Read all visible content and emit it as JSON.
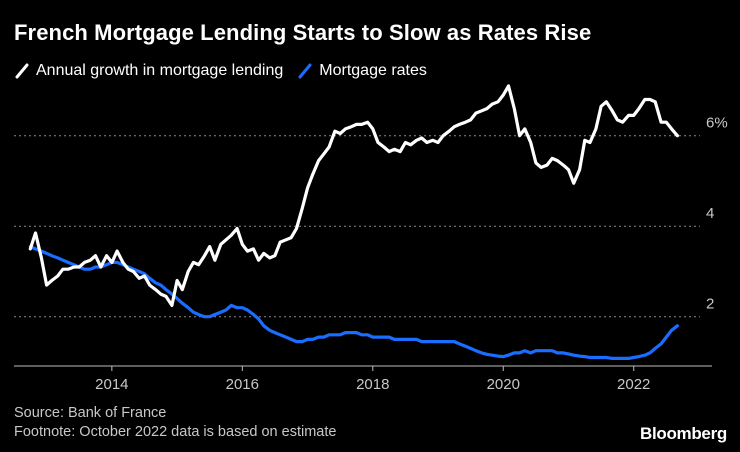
{
  "chart_data": {
    "type": "line",
    "title": "French Mortgage Lending Starts to Slow as Rates Rise",
    "y_unit_label": "6%",
    "x_ticks": [
      2014,
      2016,
      2018,
      2020,
      2022
    ],
    "y_ticks": [
      2,
      4,
      6
    ],
    "xlim": [
      2012.5,
      2023.2
    ],
    "ylim": [
      1.0,
      6.9
    ],
    "grid": true,
    "legend_position": "top-left",
    "series": [
      {
        "name": "Annual growth in mortgage lending",
        "color": "#ffffff",
        "points": [
          [
            2012.75,
            3.5
          ],
          [
            2012.83,
            3.85
          ],
          [
            2012.92,
            3.3
          ],
          [
            2013.0,
            2.7
          ],
          [
            2013.08,
            2.8
          ],
          [
            2013.17,
            2.9
          ],
          [
            2013.25,
            3.05
          ],
          [
            2013.33,
            3.05
          ],
          [
            2013.42,
            3.1
          ],
          [
            2013.5,
            3.1
          ],
          [
            2013.58,
            3.2
          ],
          [
            2013.67,
            3.25
          ],
          [
            2013.75,
            3.35
          ],
          [
            2013.83,
            3.1
          ],
          [
            2013.92,
            3.35
          ],
          [
            2014.0,
            3.2
          ],
          [
            2014.08,
            3.45
          ],
          [
            2014.17,
            3.2
          ],
          [
            2014.25,
            3.05
          ],
          [
            2014.33,
            3.0
          ],
          [
            2014.42,
            2.85
          ],
          [
            2014.5,
            2.9
          ],
          [
            2014.58,
            2.7
          ],
          [
            2014.67,
            2.6
          ],
          [
            2014.75,
            2.5
          ],
          [
            2014.83,
            2.45
          ],
          [
            2014.92,
            2.25
          ],
          [
            2015.0,
            2.8
          ],
          [
            2015.08,
            2.6
          ],
          [
            2015.17,
            3.0
          ],
          [
            2015.25,
            3.2
          ],
          [
            2015.33,
            3.15
          ],
          [
            2015.42,
            3.35
          ],
          [
            2015.5,
            3.55
          ],
          [
            2015.58,
            3.25
          ],
          [
            2015.67,
            3.6
          ],
          [
            2015.75,
            3.7
          ],
          [
            2015.83,
            3.8
          ],
          [
            2015.92,
            3.95
          ],
          [
            2016.0,
            3.6
          ],
          [
            2016.08,
            3.45
          ],
          [
            2016.17,
            3.5
          ],
          [
            2016.25,
            3.25
          ],
          [
            2016.33,
            3.4
          ],
          [
            2016.42,
            3.3
          ],
          [
            2016.5,
            3.35
          ],
          [
            2016.58,
            3.65
          ],
          [
            2016.67,
            3.7
          ],
          [
            2016.75,
            3.75
          ],
          [
            2016.83,
            3.95
          ],
          [
            2016.92,
            4.4
          ],
          [
            2017.0,
            4.85
          ],
          [
            2017.08,
            5.15
          ],
          [
            2017.17,
            5.45
          ],
          [
            2017.25,
            5.6
          ],
          [
            2017.33,
            5.75
          ],
          [
            2017.42,
            6.1
          ],
          [
            2017.5,
            6.05
          ],
          [
            2017.58,
            6.15
          ],
          [
            2017.67,
            6.2
          ],
          [
            2017.75,
            6.25
          ],
          [
            2017.83,
            6.25
          ],
          [
            2017.92,
            6.3
          ],
          [
            2018.0,
            6.15
          ],
          [
            2018.08,
            5.85
          ],
          [
            2018.17,
            5.75
          ],
          [
            2018.25,
            5.65
          ],
          [
            2018.33,
            5.7
          ],
          [
            2018.42,
            5.65
          ],
          [
            2018.5,
            5.85
          ],
          [
            2018.58,
            5.8
          ],
          [
            2018.67,
            5.9
          ],
          [
            2018.75,
            5.95
          ],
          [
            2018.83,
            5.85
          ],
          [
            2018.92,
            5.9
          ],
          [
            2019.0,
            5.85
          ],
          [
            2019.08,
            6.0
          ],
          [
            2019.17,
            6.1
          ],
          [
            2019.25,
            6.2
          ],
          [
            2019.33,
            6.25
          ],
          [
            2019.42,
            6.3
          ],
          [
            2019.5,
            6.35
          ],
          [
            2019.58,
            6.5
          ],
          [
            2019.67,
            6.55
          ],
          [
            2019.75,
            6.6
          ],
          [
            2019.83,
            6.7
          ],
          [
            2019.92,
            6.75
          ],
          [
            2020.0,
            6.9
          ],
          [
            2020.08,
            7.1
          ],
          [
            2020.17,
            6.6
          ],
          [
            2020.25,
            6.0
          ],
          [
            2020.33,
            6.15
          ],
          [
            2020.42,
            5.85
          ],
          [
            2020.5,
            5.4
          ],
          [
            2020.58,
            5.3
          ],
          [
            2020.67,
            5.35
          ],
          [
            2020.75,
            5.5
          ],
          [
            2020.83,
            5.45
          ],
          [
            2020.92,
            5.35
          ],
          [
            2021.0,
            5.25
          ],
          [
            2021.08,
            4.95
          ],
          [
            2021.17,
            5.25
          ],
          [
            2021.25,
            5.9
          ],
          [
            2021.33,
            5.85
          ],
          [
            2021.42,
            6.15
          ],
          [
            2021.5,
            6.65
          ],
          [
            2021.58,
            6.75
          ],
          [
            2021.67,
            6.55
          ],
          [
            2021.75,
            6.35
          ],
          [
            2021.83,
            6.3
          ],
          [
            2021.92,
            6.45
          ],
          [
            2022.0,
            6.45
          ],
          [
            2022.08,
            6.6
          ],
          [
            2022.17,
            6.8
          ],
          [
            2022.25,
            6.8
          ],
          [
            2022.33,
            6.75
          ],
          [
            2022.42,
            6.3
          ],
          [
            2022.5,
            6.3
          ],
          [
            2022.58,
            6.15
          ],
          [
            2022.67,
            6.0
          ]
        ]
      },
      {
        "name": "Mortgage rates",
        "color": "#1a6dff",
        "points": [
          [
            2012.75,
            3.55
          ],
          [
            2012.83,
            3.5
          ],
          [
            2012.92,
            3.45
          ],
          [
            2013.0,
            3.4
          ],
          [
            2013.08,
            3.35
          ],
          [
            2013.17,
            3.3
          ],
          [
            2013.25,
            3.25
          ],
          [
            2013.33,
            3.2
          ],
          [
            2013.42,
            3.15
          ],
          [
            2013.5,
            3.1
          ],
          [
            2013.58,
            3.05
          ],
          [
            2013.67,
            3.05
          ],
          [
            2013.75,
            3.1
          ],
          [
            2013.83,
            3.1
          ],
          [
            2013.92,
            3.15
          ],
          [
            2014.0,
            3.2
          ],
          [
            2014.08,
            3.2
          ],
          [
            2014.17,
            3.15
          ],
          [
            2014.25,
            3.1
          ],
          [
            2014.33,
            3.05
          ],
          [
            2014.42,
            3.0
          ],
          [
            2014.5,
            2.95
          ],
          [
            2014.58,
            2.85
          ],
          [
            2014.67,
            2.75
          ],
          [
            2014.75,
            2.7
          ],
          [
            2014.83,
            2.6
          ],
          [
            2014.92,
            2.5
          ],
          [
            2015.0,
            2.4
          ],
          [
            2015.08,
            2.3
          ],
          [
            2015.17,
            2.2
          ],
          [
            2015.25,
            2.1
          ],
          [
            2015.33,
            2.05
          ],
          [
            2015.42,
            2.0
          ],
          [
            2015.5,
            2.0
          ],
          [
            2015.58,
            2.05
          ],
          [
            2015.67,
            2.1
          ],
          [
            2015.75,
            2.15
          ],
          [
            2015.83,
            2.25
          ],
          [
            2015.92,
            2.2
          ],
          [
            2016.0,
            2.2
          ],
          [
            2016.08,
            2.15
          ],
          [
            2016.17,
            2.05
          ],
          [
            2016.25,
            1.95
          ],
          [
            2016.33,
            1.8
          ],
          [
            2016.42,
            1.7
          ],
          [
            2016.5,
            1.65
          ],
          [
            2016.58,
            1.6
          ],
          [
            2016.67,
            1.55
          ],
          [
            2016.75,
            1.5
          ],
          [
            2016.83,
            1.45
          ],
          [
            2016.92,
            1.45
          ],
          [
            2017.0,
            1.5
          ],
          [
            2017.08,
            1.5
          ],
          [
            2017.17,
            1.55
          ],
          [
            2017.25,
            1.55
          ],
          [
            2017.33,
            1.6
          ],
          [
            2017.42,
            1.6
          ],
          [
            2017.5,
            1.6
          ],
          [
            2017.58,
            1.65
          ],
          [
            2017.67,
            1.65
          ],
          [
            2017.75,
            1.65
          ],
          [
            2017.83,
            1.6
          ],
          [
            2017.92,
            1.6
          ],
          [
            2018.0,
            1.55
          ],
          [
            2018.08,
            1.55
          ],
          [
            2018.17,
            1.55
          ],
          [
            2018.25,
            1.55
          ],
          [
            2018.33,
            1.5
          ],
          [
            2018.42,
            1.5
          ],
          [
            2018.5,
            1.5
          ],
          [
            2018.58,
            1.5
          ],
          [
            2018.67,
            1.5
          ],
          [
            2018.75,
            1.45
          ],
          [
            2018.83,
            1.45
          ],
          [
            2018.92,
            1.45
          ],
          [
            2019.0,
            1.45
          ],
          [
            2019.08,
            1.45
          ],
          [
            2019.17,
            1.45
          ],
          [
            2019.25,
            1.45
          ],
          [
            2019.33,
            1.4
          ],
          [
            2019.42,
            1.35
          ],
          [
            2019.5,
            1.3
          ],
          [
            2019.58,
            1.25
          ],
          [
            2019.67,
            1.2
          ],
          [
            2019.75,
            1.17
          ],
          [
            2019.83,
            1.15
          ],
          [
            2019.92,
            1.13
          ],
          [
            2020.0,
            1.12
          ],
          [
            2020.08,
            1.15
          ],
          [
            2020.17,
            1.2
          ],
          [
            2020.25,
            1.2
          ],
          [
            2020.33,
            1.25
          ],
          [
            2020.42,
            1.2
          ],
          [
            2020.5,
            1.25
          ],
          [
            2020.58,
            1.25
          ],
          [
            2020.67,
            1.25
          ],
          [
            2020.75,
            1.25
          ],
          [
            2020.83,
            1.2
          ],
          [
            2020.92,
            1.2
          ],
          [
            2021.0,
            1.18
          ],
          [
            2021.08,
            1.15
          ],
          [
            2021.17,
            1.13
          ],
          [
            2021.25,
            1.12
          ],
          [
            2021.33,
            1.1
          ],
          [
            2021.42,
            1.1
          ],
          [
            2021.5,
            1.1
          ],
          [
            2021.58,
            1.1
          ],
          [
            2021.67,
            1.08
          ],
          [
            2021.75,
            1.08
          ],
          [
            2021.83,
            1.08
          ],
          [
            2021.92,
            1.08
          ],
          [
            2022.0,
            1.1
          ],
          [
            2022.08,
            1.12
          ],
          [
            2022.17,
            1.15
          ],
          [
            2022.25,
            1.2
          ],
          [
            2022.33,
            1.3
          ],
          [
            2022.42,
            1.4
          ],
          [
            2022.5,
            1.55
          ],
          [
            2022.58,
            1.7
          ],
          [
            2022.67,
            1.8
          ]
        ]
      }
    ],
    "source": "Source: Bank of France",
    "footnote": "Footnote: October 2022 data is based on estimate",
    "brand": "Bloomberg"
  }
}
